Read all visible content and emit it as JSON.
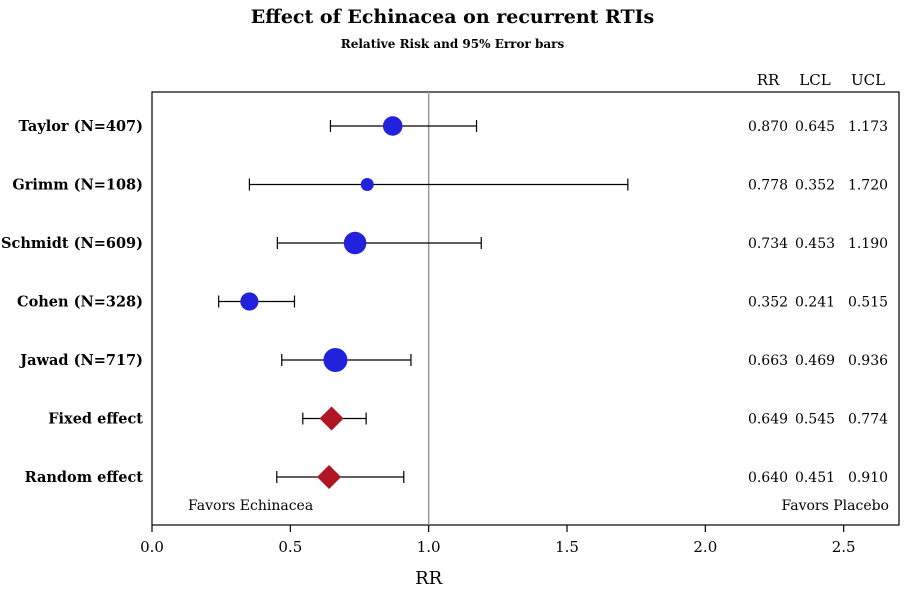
{
  "chart_data": {
    "type": "forest",
    "title": "Effect of Echinacea on recurrent RTIs",
    "subtitle": "Relative Risk and 95% Error bars",
    "xlabel": "RR",
    "xlim": [
      0.0,
      2.7
    ],
    "xticks": [
      "0.0",
      "0.5",
      "1.0",
      "1.5",
      "2.0",
      "2.5"
    ],
    "reference_line": 1.0,
    "table_headers": [
      "RR",
      "LCL",
      "UCL"
    ],
    "favors_left": "Favors Echinacea",
    "favors_right": "Favors Placebo",
    "rows": [
      {
        "label": "Taylor (N=407)",
        "rr": 0.87,
        "lcl": 0.645,
        "ucl": 1.173,
        "rr_text": "0.870",
        "lcl_text": "0.645",
        "ucl_text": "1.173",
        "marker": "circle",
        "weight": 407
      },
      {
        "label": "Grimm (N=108)",
        "rr": 0.778,
        "lcl": 0.352,
        "ucl": 1.72,
        "rr_text": "0.778",
        "lcl_text": "0.352",
        "ucl_text": "1.720",
        "marker": "circle",
        "weight": 108
      },
      {
        "label": "Schmidt (N=609)",
        "rr": 0.734,
        "lcl": 0.453,
        "ucl": 1.19,
        "rr_text": "0.734",
        "lcl_text": "0.453",
        "ucl_text": "1.190",
        "marker": "circle",
        "weight": 609
      },
      {
        "label": "Cohen (N=328)",
        "rr": 0.352,
        "lcl": 0.241,
        "ucl": 0.515,
        "rr_text": "0.352",
        "lcl_text": "0.241",
        "ucl_text": "0.515",
        "marker": "circle",
        "weight": 328
      },
      {
        "label": "Jawad (N=717)",
        "rr": 0.663,
        "lcl": 0.469,
        "ucl": 0.936,
        "rr_text": "0.663",
        "lcl_text": "0.469",
        "ucl_text": "0.936",
        "marker": "circle",
        "weight": 717
      },
      {
        "label": "Fixed effect",
        "rr": 0.649,
        "lcl": 0.545,
        "ucl": 0.774,
        "rr_text": "0.649",
        "lcl_text": "0.545",
        "ucl_text": "0.774",
        "marker": "diamond"
      },
      {
        "label": "Random effect",
        "rr": 0.64,
        "lcl": 0.451,
        "ucl": 0.91,
        "rr_text": "0.640",
        "lcl_text": "0.451",
        "ucl_text": "0.910",
        "marker": "diamond"
      }
    ],
    "colors": {
      "study_marker": "#2222dd",
      "summary_marker": "#b01525",
      "reference_line": "#999999",
      "axis": "#000000"
    }
  }
}
